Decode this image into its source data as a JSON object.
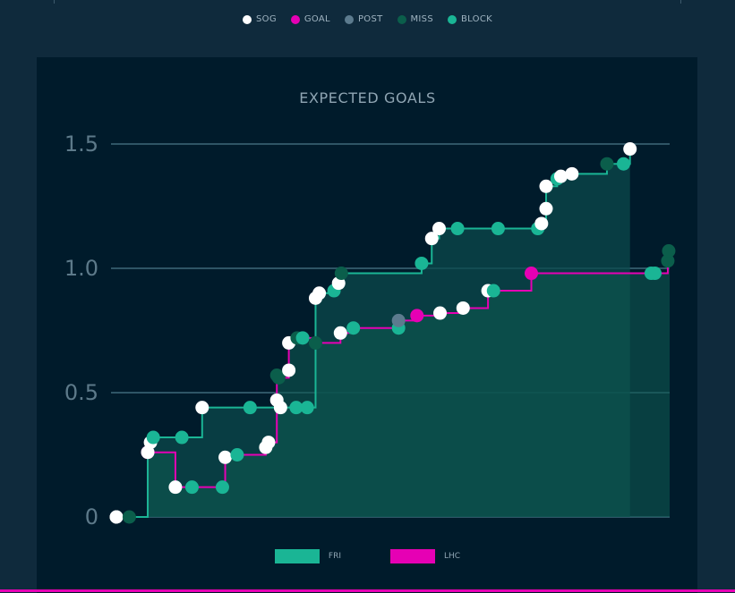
{
  "legend": {
    "items": [
      {
        "label": "SOG",
        "color": "#ffffff"
      },
      {
        "label": "GOAL",
        "color": "#e600b4"
      },
      {
        "label": "POST",
        "color": "#5c7b8e"
      },
      {
        "label": "MISS",
        "color": "#0b5e4b"
      },
      {
        "label": "BLOCK",
        "color": "#1ab595"
      }
    ]
  },
  "teams": [
    {
      "label": "FRI",
      "color": "#1ab595"
    },
    {
      "label": "LHC",
      "color": "#e600b4"
    }
  ],
  "chart_data": {
    "type": "line",
    "title": "EXPECTED GOALS",
    "xlabel": "",
    "ylabel": "",
    "ylim": [
      0,
      1.5
    ],
    "xlim": [
      0,
      60
    ],
    "yticks": [
      "0",
      "0.5",
      "1.0",
      "1.5"
    ],
    "series": [
      {
        "name": "FRI",
        "color": "#1ab595",
        "steps": [
          {
            "x": 0.0,
            "y": 0.0,
            "type": "SOG"
          },
          {
            "x": 1.4,
            "y": 0.0,
            "type": "MISS"
          },
          {
            "x": 3.4,
            "y": 0.26,
            "type": "SOG"
          },
          {
            "x": 3.7,
            "y": 0.3,
            "type": "SOG"
          },
          {
            "x": 4.0,
            "y": 0.32,
            "type": "BLOCK"
          },
          {
            "x": 7.1,
            "y": 0.32,
            "type": "BLOCK"
          },
          {
            "x": 9.3,
            "y": 0.44,
            "type": "SOG"
          },
          {
            "x": 14.5,
            "y": 0.44,
            "type": "BLOCK"
          },
          {
            "x": 17.8,
            "y": 0.44,
            "type": "SOG"
          },
          {
            "x": 19.5,
            "y": 0.44,
            "type": "BLOCK"
          },
          {
            "x": 20.7,
            "y": 0.44,
            "type": "BLOCK"
          },
          {
            "x": 21.6,
            "y": 0.88,
            "type": "SOG"
          },
          {
            "x": 22.0,
            "y": 0.9,
            "type": "SOG"
          },
          {
            "x": 23.6,
            "y": 0.91,
            "type": "BLOCK"
          },
          {
            "x": 24.1,
            "y": 0.94,
            "type": "SOG"
          },
          {
            "x": 24.4,
            "y": 0.98,
            "type": "MISS"
          },
          {
            "x": 33.1,
            "y": 1.02,
            "type": "BLOCK"
          },
          {
            "x": 34.2,
            "y": 1.12,
            "type": "SOG"
          },
          {
            "x": 35.0,
            "y": 1.16,
            "type": "SOG"
          },
          {
            "x": 37.0,
            "y": 1.16,
            "type": "BLOCK"
          },
          {
            "x": 41.4,
            "y": 1.16,
            "type": "BLOCK"
          },
          {
            "x": 45.7,
            "y": 1.16,
            "type": "BLOCK"
          },
          {
            "x": 46.1,
            "y": 1.18,
            "type": "SOG"
          },
          {
            "x": 46.6,
            "y": 1.24,
            "type": "SOG"
          },
          {
            "x": 46.6,
            "y": 1.33,
            "type": "SOG"
          },
          {
            "x": 47.8,
            "y": 1.36,
            "type": "BLOCK"
          },
          {
            "x": 48.2,
            "y": 1.37,
            "type": "SOG"
          },
          {
            "x": 49.4,
            "y": 1.38,
            "type": "SOG"
          },
          {
            "x": 53.2,
            "y": 1.42,
            "type": "MISS"
          },
          {
            "x": 55.0,
            "y": 1.42,
            "type": "BLOCK"
          },
          {
            "x": 55.7,
            "y": 1.48,
            "type": "SOG"
          }
        ]
      },
      {
        "name": "LHC",
        "color": "#e600b4",
        "steps": [
          {
            "x": 0.0,
            "y": 0.0,
            "type": "SOG"
          },
          {
            "x": 3.4,
            "y": 0.26,
            "type": "GOAL"
          },
          {
            "x": 6.4,
            "y": 0.12,
            "type": "SOG"
          },
          {
            "x": 8.2,
            "y": 0.12,
            "type": "BLOCK"
          },
          {
            "x": 11.5,
            "y": 0.12,
            "type": "BLOCK"
          },
          {
            "x": 11.8,
            "y": 0.24,
            "type": "SOG"
          },
          {
            "x": 13.1,
            "y": 0.25,
            "type": "BLOCK"
          },
          {
            "x": 16.2,
            "y": 0.28,
            "type": "SOG"
          },
          {
            "x": 16.5,
            "y": 0.3,
            "type": "SOG"
          },
          {
            "x": 17.4,
            "y": 0.47,
            "type": "SOG"
          },
          {
            "x": 17.4,
            "y": 0.57,
            "type": "MISS"
          },
          {
            "x": 17.6,
            "y": 0.56,
            "type": "MISS"
          },
          {
            "x": 18.7,
            "y": 0.59,
            "type": "SOG"
          },
          {
            "x": 18.7,
            "y": 0.7,
            "type": "SOG"
          },
          {
            "x": 19.6,
            "y": 0.72,
            "type": "MISS"
          },
          {
            "x": 20.2,
            "y": 0.72,
            "type": "BLOCK"
          },
          {
            "x": 21.6,
            "y": 0.7,
            "type": "MISS"
          },
          {
            "x": 24.3,
            "y": 0.74,
            "type": "SOG"
          },
          {
            "x": 25.7,
            "y": 0.76,
            "type": "BLOCK"
          },
          {
            "x": 30.6,
            "y": 0.76,
            "type": "BLOCK"
          },
          {
            "x": 30.6,
            "y": 0.79,
            "type": "POST"
          },
          {
            "x": 32.6,
            "y": 0.81,
            "type": "GOAL"
          },
          {
            "x": 35.1,
            "y": 0.82,
            "type": "SOG"
          },
          {
            "x": 37.6,
            "y": 0.84,
            "type": "SOG"
          },
          {
            "x": 40.3,
            "y": 0.91,
            "type": "SOG"
          },
          {
            "x": 40.9,
            "y": 0.91,
            "type": "BLOCK"
          },
          {
            "x": 45.0,
            "y": 0.98,
            "type": "GOAL"
          },
          {
            "x": 58.0,
            "y": 0.98,
            "type": "BLOCK"
          },
          {
            "x": 58.4,
            "y": 0.98,
            "type": "BLOCK"
          },
          {
            "x": 59.8,
            "y": 1.03,
            "type": "MISS"
          },
          {
            "x": 59.9,
            "y": 1.07,
            "type": "MISS"
          }
        ]
      }
    ]
  }
}
